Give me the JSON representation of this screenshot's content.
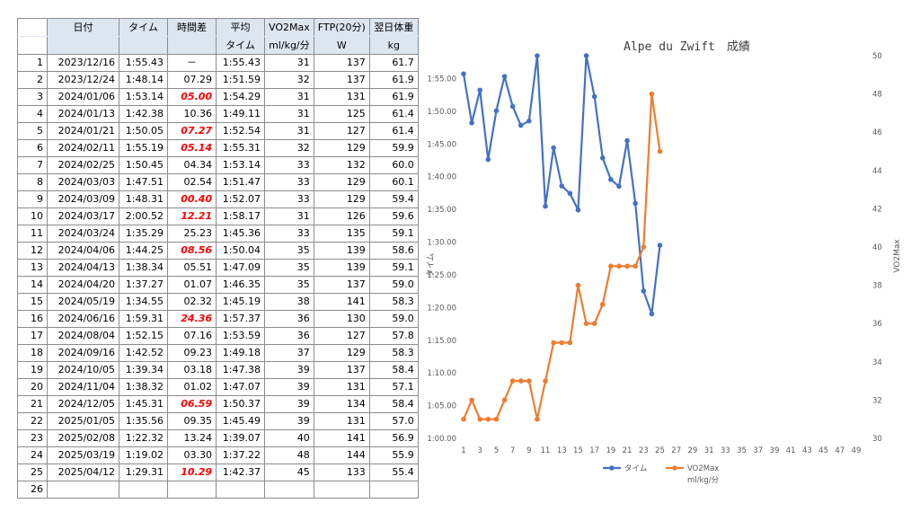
{
  "sheet": {
    "headers_top": [
      "",
      "日付",
      "タイム",
      "時間差",
      "平均",
      "VO2Max",
      "FTP(20分)",
      "翌日体重"
    ],
    "headers_bottom": [
      "",
      "",
      "",
      "",
      "タイム",
      "ml/kg/分",
      "W",
      "kg"
    ],
    "rows": [
      {
        "n": "1",
        "date": "2023/12/16",
        "time": "1:55.43",
        "diff": "－",
        "avg": "1:55.43",
        "vo2": "31",
        "ftp": "137",
        "wt": "61.7",
        "red": false
      },
      {
        "n": "2",
        "date": "2023/12/24",
        "time": "1:48.14",
        "diff": "07.29",
        "avg": "1:51.59",
        "vo2": "32",
        "ftp": "137",
        "wt": "61.9",
        "red": false
      },
      {
        "n": "3",
        "date": "2024/01/06",
        "time": "1:53.14",
        "diff": "05.00",
        "avg": "1:54.29",
        "vo2": "31",
        "ftp": "131",
        "wt": "61.9",
        "red": true
      },
      {
        "n": "4",
        "date": "2024/01/13",
        "time": "1:42.38",
        "diff": "10.36",
        "avg": "1:49.11",
        "vo2": "31",
        "ftp": "125",
        "wt": "61.4",
        "red": false
      },
      {
        "n": "5",
        "date": "2024/01/21",
        "time": "1:50.05",
        "diff": "07.27",
        "avg": "1:52.54",
        "vo2": "31",
        "ftp": "127",
        "wt": "61.4",
        "red": true
      },
      {
        "n": "6",
        "date": "2024/02/11",
        "time": "1:55.19",
        "diff": "05.14",
        "avg": "1:55.31",
        "vo2": "32",
        "ftp": "129",
        "wt": "59.9",
        "red": true
      },
      {
        "n": "7",
        "date": "2024/02/25",
        "time": "1:50.45",
        "diff": "04.34",
        "avg": "1:53.14",
        "vo2": "33",
        "ftp": "132",
        "wt": "60.0",
        "red": false
      },
      {
        "n": "8",
        "date": "2024/03/03",
        "time": "1:47.51",
        "diff": "02.54",
        "avg": "1:51.47",
        "vo2": "33",
        "ftp": "129",
        "wt": "60.1",
        "red": false
      },
      {
        "n": "9",
        "date": "2024/03/09",
        "time": "1:48.31",
        "diff": "00.40",
        "avg": "1:52.07",
        "vo2": "33",
        "ftp": "129",
        "wt": "59.4",
        "red": true
      },
      {
        "n": "10",
        "date": "2024/03/17",
        "time": "2:00.52",
        "diff": "12.21",
        "avg": "1:58.17",
        "vo2": "31",
        "ftp": "126",
        "wt": "59.6",
        "red": true
      },
      {
        "n": "11",
        "date": "2024/03/24",
        "time": "1:35.29",
        "diff": "25.23",
        "avg": "1:45.36",
        "vo2": "33",
        "ftp": "135",
        "wt": "59.1",
        "red": false
      },
      {
        "n": "12",
        "date": "2024/04/06",
        "time": "1:44.25",
        "diff": "08.56",
        "avg": "1:50.04",
        "vo2": "35",
        "ftp": "139",
        "wt": "58.6",
        "red": true
      },
      {
        "n": "13",
        "date": "2024/04/13",
        "time": "1:38.34",
        "diff": "05.51",
        "avg": "1:47.09",
        "vo2": "35",
        "ftp": "139",
        "wt": "59.1",
        "red": false
      },
      {
        "n": "14",
        "date": "2024/04/20",
        "time": "1:37.27",
        "diff": "01.07",
        "avg": "1:46.35",
        "vo2": "35",
        "ftp": "137",
        "wt": "59.0",
        "red": false
      },
      {
        "n": "15",
        "date": "2024/05/19",
        "time": "1:34.55",
        "diff": "02.32",
        "avg": "1:45.19",
        "vo2": "38",
        "ftp": "141",
        "wt": "58.3",
        "red": false
      },
      {
        "n": "16",
        "date": "2024/06/16",
        "time": "1:59.31",
        "diff": "24.36",
        "avg": "1:57.37",
        "vo2": "36",
        "ftp": "130",
        "wt": "59.0",
        "red": true
      },
      {
        "n": "17",
        "date": "2024/08/04",
        "time": "1:52.15",
        "diff": "07.16",
        "avg": "1:53.59",
        "vo2": "36",
        "ftp": "127",
        "wt": "57.8",
        "red": false
      },
      {
        "n": "18",
        "date": "2024/09/16",
        "time": "1:42.52",
        "diff": "09.23",
        "avg": "1:49.18",
        "vo2": "37",
        "ftp": "129",
        "wt": "58.3",
        "red": false
      },
      {
        "n": "19",
        "date": "2024/10/05",
        "time": "1:39.34",
        "diff": "03.18",
        "avg": "1:47.38",
        "vo2": "39",
        "ftp": "137",
        "wt": "58.4",
        "red": false
      },
      {
        "n": "20",
        "date": "2024/11/04",
        "time": "1:38.32",
        "diff": "01.02",
        "avg": "1:47.07",
        "vo2": "39",
        "ftp": "131",
        "wt": "57.1",
        "red": false
      },
      {
        "n": "21",
        "date": "2024/12/05",
        "time": "1:45.31",
        "diff": "06.59",
        "avg": "1:50.37",
        "vo2": "39",
        "ftp": "134",
        "wt": "58.4",
        "red": true
      },
      {
        "n": "22",
        "date": "2025/01/05",
        "time": "1:35.56",
        "diff": "09.35",
        "avg": "1:45.49",
        "vo2": "39",
        "ftp": "131",
        "wt": "57.0",
        "red": false
      },
      {
        "n": "23",
        "date": "2025/02/08",
        "time": "1:22.32",
        "diff": "13.24",
        "avg": "1:39.07",
        "vo2": "40",
        "ftp": "141",
        "wt": "56.9",
        "red": false
      },
      {
        "n": "24",
        "date": "2025/03/19",
        "time": "1:19.02",
        "diff": "03.30",
        "avg": "1:37.22",
        "vo2": "48",
        "ftp": "144",
        "wt": "55.9",
        "red": false
      },
      {
        "n": "25",
        "date": "2025/04/12",
        "time": "1:29.31",
        "diff": "10.29",
        "avg": "1:42.37",
        "vo2": "45",
        "ftp": "133",
        "wt": "55.4",
        "red": true
      },
      {
        "n": "26",
        "date": "",
        "time": "",
        "diff": "",
        "avg": "",
        "vo2": "",
        "ftp": "",
        "wt": "",
        "red": false
      }
    ]
  },
  "chart_data": {
    "type": "line",
    "title": "Alpe du Zwift　成績",
    "x": [
      1,
      2,
      3,
      4,
      5,
      6,
      7,
      8,
      9,
      10,
      11,
      12,
      13,
      14,
      15,
      16,
      17,
      18,
      19,
      20,
      21,
      22,
      23,
      24,
      25
    ],
    "x_ticks": [
      "1",
      "3",
      "5",
      "7",
      "9",
      "11",
      "13",
      "15",
      "17",
      "19",
      "21",
      "23",
      "25",
      "27",
      "29",
      "31",
      "33",
      "35",
      "37",
      "39",
      "41",
      "43",
      "45",
      "47",
      "49"
    ],
    "xlim": [
      1,
      49
    ],
    "y_left": {
      "label": "タイム",
      "ticks": [
        "1:00.00",
        "1:05.00",
        "1:10.00",
        "1:15.00",
        "1:20.00",
        "1:25.00",
        "1:30.00",
        "1:35.00",
        "1:40.00",
        "1:45.00",
        "1:50.00",
        "1:55.00"
      ],
      "lim_minutes": [
        60,
        118.5
      ]
    },
    "y_right": {
      "label": "VO2Max",
      "ticks": [
        "30",
        "32",
        "34",
        "36",
        "38",
        "40",
        "42",
        "44",
        "46",
        "48",
        "50"
      ],
      "lim": [
        30,
        50
      ]
    },
    "series": [
      {
        "name": "タイム",
        "axis": "left",
        "color": "#4472c4",
        "values_minutes": [
          115.72,
          108.23,
          113.23,
          102.63,
          110.08,
          115.32,
          110.75,
          107.85,
          108.52,
          120.87,
          95.48,
          104.42,
          98.57,
          97.45,
          94.92,
          119.52,
          112.25,
          102.87,
          99.57,
          98.53,
          105.52,
          95.93,
          82.53,
          79.03,
          89.52
        ]
      },
      {
        "name": "VO2Max",
        "axis": "right",
        "color": "#ed7d31",
        "values": [
          31,
          32,
          31,
          31,
          31,
          32,
          33,
          33,
          33,
          31,
          33,
          35,
          35,
          35,
          38,
          36,
          36,
          37,
          39,
          39,
          39,
          39,
          40,
          48,
          45
        ]
      }
    ],
    "legend": {
      "position": "bottom",
      "entries": [
        "タイム",
        "VO2Max"
      ],
      "sub": "ml/kg/分"
    },
    "grid": false
  }
}
